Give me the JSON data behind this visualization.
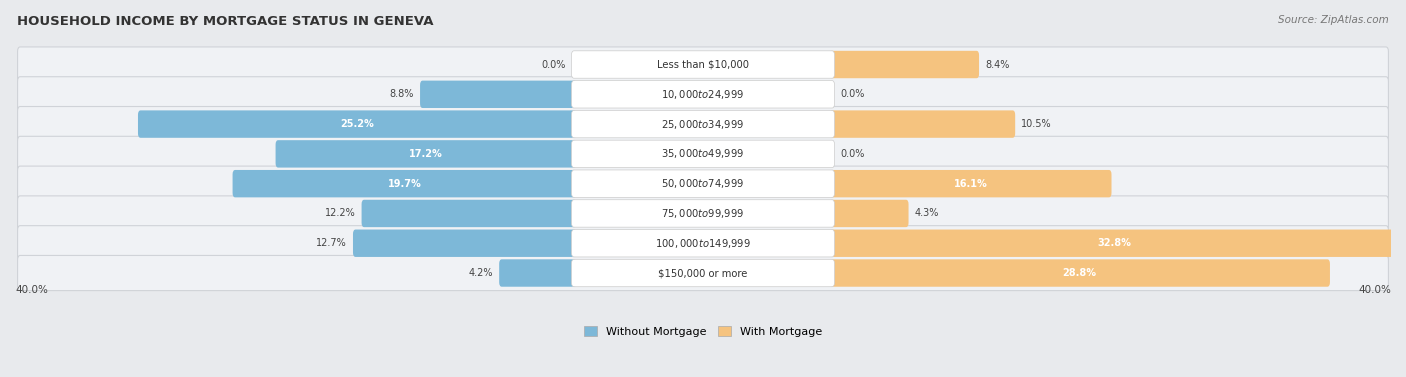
{
  "title": "HOUSEHOLD INCOME BY MORTGAGE STATUS IN GENEVA",
  "source": "Source: ZipAtlas.com",
  "categories": [
    "Less than $10,000",
    "$10,000 to $24,999",
    "$25,000 to $34,999",
    "$35,000 to $49,999",
    "$50,000 to $74,999",
    "$75,000 to $99,999",
    "$100,000 to $149,999",
    "$150,000 or more"
  ],
  "without_mortgage": [
    0.0,
    8.8,
    25.2,
    17.2,
    19.7,
    12.2,
    12.7,
    4.2
  ],
  "with_mortgage": [
    8.4,
    0.0,
    10.5,
    0.0,
    16.1,
    4.3,
    32.8,
    28.8
  ],
  "without_mortgage_color": "#7db8d8",
  "with_mortgage_color": "#f5c37f",
  "xlim": 40.0,
  "axis_label_left": "40.0%",
  "axis_label_right": "40.0%",
  "legend_without": "Without Mortgage",
  "legend_with": "With Mortgage",
  "fig_bg": "#e8eaed",
  "row_bg": "#ebedf0",
  "row_border": "#d0d3d8"
}
